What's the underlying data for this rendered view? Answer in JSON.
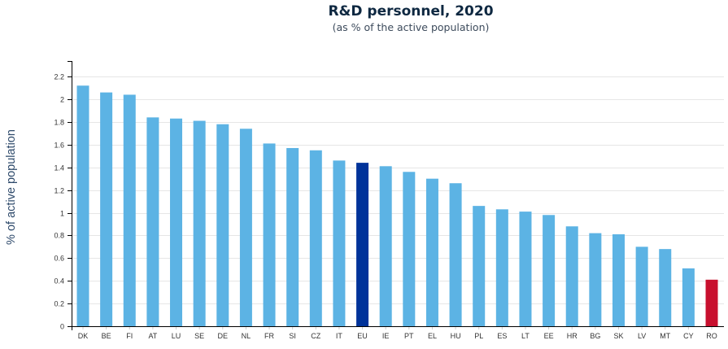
{
  "chart_data": {
    "type": "bar",
    "title": "R&D personnel, 2020",
    "subtitle": "(as % of the active population)",
    "xlabel": "",
    "ylabel": "% of active population",
    "ylim": [
      0,
      2.3
    ],
    "yticks": [
      0,
      0.2,
      0.4,
      0.6,
      0.8,
      1,
      1.2,
      1.4,
      1.6,
      1.8,
      2,
      2.2
    ],
    "ytick_labels": [
      "0",
      "0.2",
      "0.4",
      "0.6",
      "0.8",
      "1",
      "1.2",
      "1.4",
      "1.6",
      "1.8",
      "2",
      "2.2"
    ],
    "grid": true,
    "legend": "none",
    "categories": [
      "DK",
      "BE",
      "FI",
      "AT",
      "LU",
      "SE",
      "DE",
      "NL",
      "FR",
      "SI",
      "CZ",
      "IT",
      "EU",
      "IE",
      "PT",
      "EL",
      "HU",
      "PL",
      "ES",
      "LT",
      "EE",
      "HR",
      "BG",
      "SK",
      "LV",
      "MT",
      "CY",
      "RO"
    ],
    "values": [
      2.12,
      2.06,
      2.04,
      1.84,
      1.83,
      1.81,
      1.78,
      1.74,
      1.61,
      1.57,
      1.55,
      1.46,
      1.44,
      1.41,
      1.36,
      1.3,
      1.26,
      1.06,
      1.03,
      1.01,
      0.98,
      0.88,
      0.82,
      0.81,
      0.7,
      0.68,
      0.51,
      0.41
    ],
    "colors": {
      "default": "#5cb3e4",
      "highlight_eu": "#00339a",
      "highlight_ro": "#c8102e",
      "grid": "#e6e6e6",
      "axis": "#000000"
    },
    "highlights": {
      "EU": "highlight_eu",
      "RO": "highlight_ro"
    }
  }
}
